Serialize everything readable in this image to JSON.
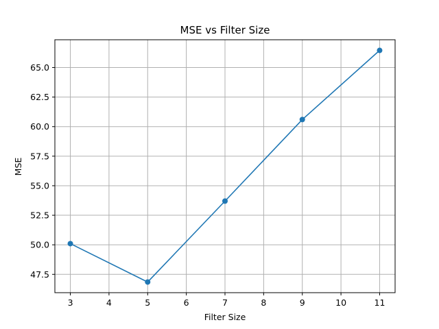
{
  "chart_data": {
    "type": "line",
    "title": "MSE vs Filter Size",
    "xlabel": "Filter Size",
    "ylabel": "MSE",
    "x": [
      3,
      5,
      7,
      9,
      11
    ],
    "series": [
      {
        "values": [
          50.1,
          46.85,
          53.7,
          60.6,
          66.45
        ],
        "color": "#1f77b4",
        "marker": "circle"
      }
    ],
    "xlim": [
      2.6,
      11.4
    ],
    "ylim": [
      45.95,
      67.35
    ],
    "xticks": [
      3,
      4,
      5,
      6,
      7,
      8,
      9,
      10,
      11
    ],
    "xtick_labels": [
      "3",
      "4",
      "5",
      "6",
      "7",
      "8",
      "9",
      "10",
      "11"
    ],
    "yticks": [
      47.5,
      50.0,
      52.5,
      55.0,
      57.5,
      60.0,
      62.5,
      65.0
    ],
    "ytick_labels": [
      "47.5",
      "50.0",
      "52.5",
      "55.0",
      "57.5",
      "60.0",
      "62.5",
      "65.0"
    ],
    "grid": true,
    "grid_color": "#b0b0b0"
  }
}
